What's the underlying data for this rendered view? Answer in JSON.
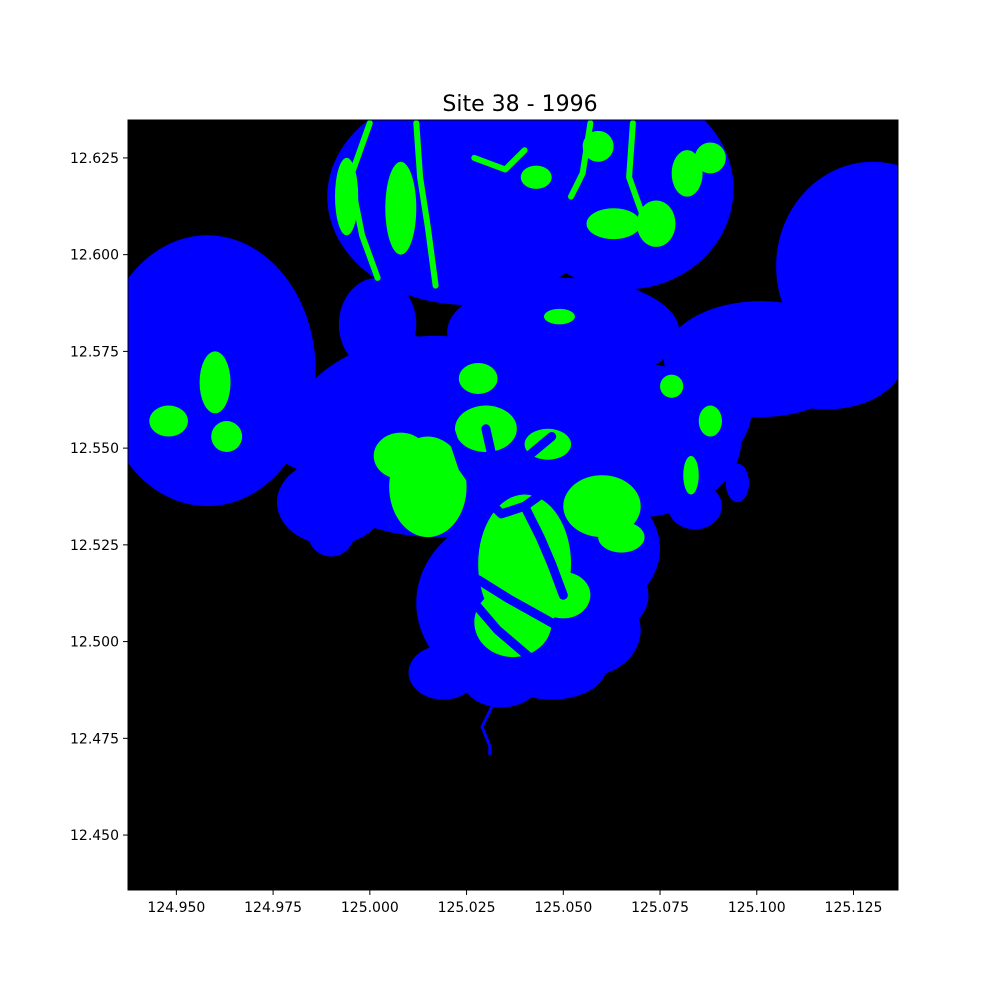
{
  "chart_data": {
    "type": "heatmap",
    "title": "Site 38 - 1996",
    "xlabel": "",
    "ylabel": "",
    "xlim": [
      124.9375,
      125.1365
    ],
    "ylim": [
      12.4358,
      12.6348
    ],
    "x_ticks": [
      "124.950",
      "124.975",
      "125.000",
      "125.025",
      "125.050",
      "125.075",
      "125.100",
      "125.125"
    ],
    "x_tick_values": [
      124.95,
      124.975,
      125.0,
      125.025,
      125.05,
      125.075,
      125.1,
      125.125
    ],
    "y_ticks": [
      "12.625",
      "12.600",
      "12.575",
      "12.550",
      "12.525",
      "12.500",
      "12.475",
      "12.450"
    ],
    "y_tick_values": [
      12.625,
      12.6,
      12.575,
      12.55,
      12.525,
      12.5,
      12.475,
      12.45
    ],
    "classes": [
      {
        "color": "#000000"
      },
      {
        "color": "#0000ff"
      },
      {
        "color": "#00ff00"
      }
    ],
    "regions": {
      "blue": [
        {
          "type": "ellipse",
          "cx": 125.025,
          "cy": 12.615,
          "rx": 0.036,
          "ry": 0.028
        },
        {
          "type": "ellipse",
          "cx": 125.066,
          "cy": 12.617,
          "rx": 0.028,
          "ry": 0.026
        },
        {
          "type": "ellipse",
          "cx": 124.958,
          "cy": 12.57,
          "rx": 0.028,
          "ry": 0.035
        },
        {
          "type": "ellipse",
          "cx": 125.13,
          "cy": 12.597,
          "rx": 0.025,
          "ry": 0.027
        },
        {
          "type": "ellipse",
          "cx": 125.05,
          "cy": 12.58,
          "rx": 0.03,
          "ry": 0.014
        },
        {
          "type": "ellipse",
          "cx": 125.017,
          "cy": 12.553,
          "rx": 0.038,
          "ry": 0.026
        },
        {
          "type": "ellipse",
          "cx": 125.068,
          "cy": 12.552,
          "rx": 0.028,
          "ry": 0.02
        },
        {
          "type": "ellipse",
          "cx": 125.101,
          "cy": 12.573,
          "rx": 0.025,
          "ry": 0.015
        },
        {
          "type": "ellipse",
          "cx": 125.04,
          "cy": 12.51,
          "rx": 0.028,
          "ry": 0.024
        },
        {
          "type": "ellipse",
          "cx": 124.99,
          "cy": 12.536,
          "rx": 0.014,
          "ry": 0.011
        },
        {
          "type": "ellipse",
          "cx": 125.053,
          "cy": 12.524,
          "rx": 0.022,
          "ry": 0.018
        },
        {
          "type": "ellipse",
          "cx": 125.095,
          "cy": 12.541,
          "rx": 0.003,
          "ry": 0.005
        },
        {
          "type": "ellipse",
          "cx": 125.084,
          "cy": 12.535,
          "rx": 0.007,
          "ry": 0.006
        },
        {
          "type": "ellipse",
          "cx": 125.019,
          "cy": 12.492,
          "rx": 0.009,
          "ry": 0.007
        },
        {
          "type": "ellipse",
          "cx": 124.99,
          "cy": 12.528,
          "rx": 0.006,
          "ry": 0.006
        },
        {
          "type": "ellipse",
          "cx": 125.087,
          "cy": 12.562,
          "rx": 0.012,
          "ry": 0.016
        },
        {
          "type": "ellipse",
          "cx": 125.118,
          "cy": 12.573,
          "rx": 0.02,
          "ry": 0.013
        },
        {
          "type": "ellipse",
          "cx": 125.002,
          "cy": 12.582,
          "rx": 0.01,
          "ry": 0.012
        },
        {
          "type": "ellipse",
          "cx": 125.056,
          "cy": 12.503,
          "rx": 0.014,
          "ry": 0.012
        },
        {
          "type": "ellipse",
          "cx": 125.047,
          "cy": 12.493,
          "rx": 0.014,
          "ry": 0.008
        },
        {
          "type": "ellipse",
          "cx": 125.034,
          "cy": 12.49,
          "rx": 0.01,
          "ry": 0.007
        },
        {
          "type": "ellipse",
          "cx": 125.065,
          "cy": 12.512,
          "rx": 0.007,
          "ry": 0.008
        },
        {
          "type": "ellipse",
          "cx": 124.985,
          "cy": 12.556,
          "rx": 0.012,
          "ry": 0.012
        },
        {
          "type": "ellipse",
          "cx": 125.01,
          "cy": 12.565,
          "rx": 0.02,
          "ry": 0.014
        }
      ],
      "blue_river": [
        [
          125.031,
          12.494
        ],
        [
          125.034,
          12.489
        ],
        [
          125.031,
          12.482
        ],
        [
          125.029,
          12.478
        ],
        [
          125.031,
          12.473
        ],
        [
          125.031,
          12.471
        ]
      ],
      "green": [
        {
          "type": "ellipse",
          "cx": 125.04,
          "cy": 12.52,
          "rx": 0.012,
          "ry": 0.018
        },
        {
          "type": "ellipse",
          "cx": 125.037,
          "cy": 12.505,
          "rx": 0.01,
          "ry": 0.009
        },
        {
          "type": "ellipse",
          "cx": 125.05,
          "cy": 12.512,
          "rx": 0.007,
          "ry": 0.006
        },
        {
          "type": "ellipse",
          "cx": 125.06,
          "cy": 12.535,
          "rx": 0.01,
          "ry": 0.008
        },
        {
          "type": "ellipse",
          "cx": 125.015,
          "cy": 12.54,
          "rx": 0.01,
          "ry": 0.013
        },
        {
          "type": "ellipse",
          "cx": 125.008,
          "cy": 12.548,
          "rx": 0.007,
          "ry": 0.006
        },
        {
          "type": "ellipse",
          "cx": 125.03,
          "cy": 12.555,
          "rx": 0.008,
          "ry": 0.006
        },
        {
          "type": "ellipse",
          "cx": 125.028,
          "cy": 12.568,
          "rx": 0.005,
          "ry": 0.004
        },
        {
          "type": "ellipse",
          "cx": 125.046,
          "cy": 12.551,
          "rx": 0.006,
          "ry": 0.004
        },
        {
          "type": "ellipse",
          "cx": 125.065,
          "cy": 12.527,
          "rx": 0.006,
          "ry": 0.004
        },
        {
          "type": "ellipse",
          "cx": 124.96,
          "cy": 12.567,
          "rx": 0.004,
          "ry": 0.008
        },
        {
          "type": "ellipse",
          "cx": 124.948,
          "cy": 12.557,
          "rx": 0.005,
          "ry": 0.004
        },
        {
          "type": "ellipse",
          "cx": 124.963,
          "cy": 12.553,
          "rx": 0.004,
          "ry": 0.004
        },
        {
          "type": "ellipse",
          "cx": 125.063,
          "cy": 12.608,
          "rx": 0.007,
          "ry": 0.004
        },
        {
          "type": "ellipse",
          "cx": 125.074,
          "cy": 12.608,
          "rx": 0.005,
          "ry": 0.006
        },
        {
          "type": "ellipse",
          "cx": 125.059,
          "cy": 12.628,
          "rx": 0.004,
          "ry": 0.004
        },
        {
          "type": "ellipse",
          "cx": 125.082,
          "cy": 12.621,
          "rx": 0.004,
          "ry": 0.006
        },
        {
          "type": "ellipse",
          "cx": 125.088,
          "cy": 12.625,
          "rx": 0.004,
          "ry": 0.004
        },
        {
          "type": "ellipse",
          "cx": 125.043,
          "cy": 12.62,
          "rx": 0.004,
          "ry": 0.003
        },
        {
          "type": "ellipse",
          "cx": 125.078,
          "cy": 12.566,
          "rx": 0.003,
          "ry": 0.003
        },
        {
          "type": "ellipse",
          "cx": 125.088,
          "cy": 12.557,
          "rx": 0.003,
          "ry": 0.004
        },
        {
          "type": "ellipse",
          "cx": 125.083,
          "cy": 12.543,
          "rx": 0.002,
          "ry": 0.005
        },
        {
          "type": "ellipse",
          "cx": 125.049,
          "cy": 12.584,
          "rx": 0.004,
          "ry": 0.002
        },
        {
          "type": "ellipse",
          "cx": 125.008,
          "cy": 12.612,
          "rx": 0.004,
          "ry": 0.012
        },
        {
          "type": "ellipse",
          "cx": 124.994,
          "cy": 12.615,
          "rx": 0.003,
          "ry": 0.01
        }
      ],
      "green_streaks": [
        [
          [
            125.0,
            12.634
          ],
          [
            124.995,
            12.62
          ],
          [
            124.998,
            12.605
          ],
          [
            125.002,
            12.594
          ]
        ],
        [
          [
            125.012,
            12.634
          ],
          [
            125.013,
            12.62
          ],
          [
            125.015,
            12.607
          ],
          [
            125.017,
            12.592
          ]
        ],
        [
          [
            125.027,
            12.625
          ],
          [
            125.035,
            12.622
          ],
          [
            125.04,
            12.627
          ]
        ],
        [
          [
            125.057,
            12.634
          ],
          [
            125.055,
            12.621
          ],
          [
            125.052,
            12.615
          ]
        ],
        [
          [
            125.068,
            12.634
          ],
          [
            125.067,
            12.62
          ],
          [
            125.072,
            12.606
          ]
        ]
      ],
      "blue_channels": [
        [
          [
            125.021,
            12.554
          ],
          [
            125.024,
            12.545
          ],
          [
            125.029,
            12.538
          ],
          [
            125.034,
            12.533
          ],
          [
            125.04,
            12.535
          ],
          [
            125.047,
            12.54
          ],
          [
            125.055,
            12.545
          ],
          [
            125.062,
            12.547
          ]
        ],
        [
          [
            125.03,
            12.555
          ],
          [
            125.032,
            12.546
          ],
          [
            125.036,
            12.54
          ]
        ],
        [
          [
            125.04,
            12.535
          ],
          [
            125.044,
            12.527
          ],
          [
            125.047,
            12.52
          ],
          [
            125.05,
            12.512
          ]
        ],
        [
          [
            125.028,
            12.516
          ],
          [
            125.036,
            12.511
          ],
          [
            125.045,
            12.506
          ],
          [
            125.052,
            12.502
          ]
        ],
        [
          [
            125.027,
            12.51
          ],
          [
            125.033,
            12.503
          ],
          [
            125.04,
            12.497
          ],
          [
            125.046,
            12.492
          ]
        ],
        [
          [
            125.036,
            12.54
          ],
          [
            125.041,
            12.548
          ],
          [
            125.047,
            12.553
          ]
        ]
      ]
    }
  }
}
